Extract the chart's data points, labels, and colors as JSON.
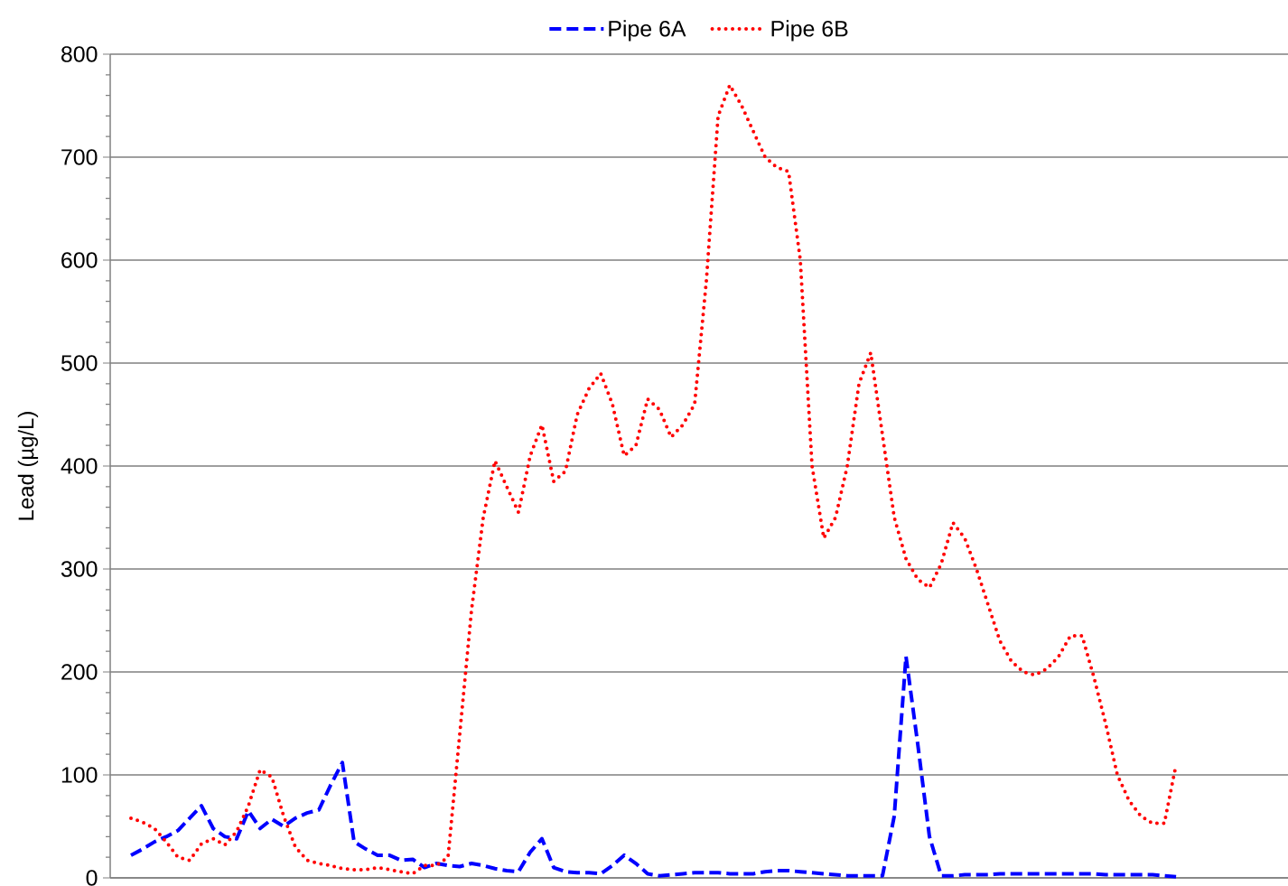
{
  "chart_data": {
    "type": "line",
    "ylabel": "Lead (µg/L)",
    "categories": [
      null,
      null,
      null,
      null,
      null,
      null,
      null,
      null,
      null,
      null,
      null,
      null,
      null,
      null,
      null,
      null,
      null,
      null,
      null,
      null,
      null,
      null,
      null,
      null,
      null,
      null,
      null,
      null,
      null,
      null,
      null,
      null,
      null,
      null,
      null,
      null,
      null,
      null,
      null,
      null,
      null,
      null,
      null,
      null,
      null,
      null,
      null,
      null,
      null,
      null,
      null,
      null,
      null,
      null,
      null,
      null,
      null,
      null,
      null,
      null,
      null,
      null,
      null,
      null,
      null,
      null,
      null,
      null,
      null,
      null,
      null,
      null,
      null,
      null,
      null,
      null,
      null,
      null,
      null,
      null,
      null,
      null,
      null,
      null,
      null,
      null,
      null,
      null,
      null,
      null
    ],
    "series": [
      {
        "name": "Pipe 6A",
        "color": "#0000ff",
        "line_style": "dashed",
        "values": [
          22,
          28,
          35,
          40,
          46,
          58,
          70,
          48,
          40,
          38,
          65,
          48,
          57,
          50,
          58,
          63,
          66,
          90,
          112,
          35,
          28,
          22,
          22,
          17,
          18,
          10,
          14,
          12,
          11,
          14,
          12,
          9,
          7,
          6,
          25,
          38,
          10,
          6,
          5,
          5,
          4,
          12,
          22,
          14,
          4,
          2,
          3,
          4,
          5,
          5,
          5,
          4,
          4,
          4,
          6,
          7,
          7,
          6,
          5,
          4,
          3,
          2,
          2,
          2,
          2,
          60,
          215,
          130,
          40,
          2,
          2,
          3,
          3,
          3,
          4,
          4,
          4,
          4,
          4,
          4,
          4,
          4,
          4,
          3,
          3,
          3,
          3,
          3,
          2,
          1
        ]
      },
      {
        "name": "Pipe 6B",
        "color": "#ff0000",
        "line_style": "dotted",
        "values": [
          58,
          54,
          48,
          35,
          20,
          17,
          33,
          38,
          32,
          45,
          70,
          105,
          98,
          60,
          30,
          17,
          14,
          12,
          9,
          8,
          8,
          10,
          8,
          6,
          4,
          12,
          12,
          20,
          140,
          260,
          350,
          405,
          380,
          355,
          410,
          440,
          385,
          395,
          450,
          475,
          490,
          460,
          410,
          420,
          465,
          455,
          428,
          440,
          460,
          580,
          740,
          770,
          750,
          725,
          700,
          690,
          686,
          600,
          400,
          330,
          350,
          400,
          480,
          510,
          430,
          350,
          310,
          290,
          282,
          305,
          345,
          330,
          300,
          265,
          230,
          210,
          200,
          197,
          203,
          215,
          235,
          235,
          195,
          150,
          100,
          75,
          60,
          53,
          53,
          110
        ]
      }
    ],
    "ylim": [
      0,
      800
    ],
    "yticks": [
      0,
      100,
      200,
      300,
      400,
      500,
      600,
      700,
      800
    ],
    "grid": "y",
    "legend": "top"
  }
}
